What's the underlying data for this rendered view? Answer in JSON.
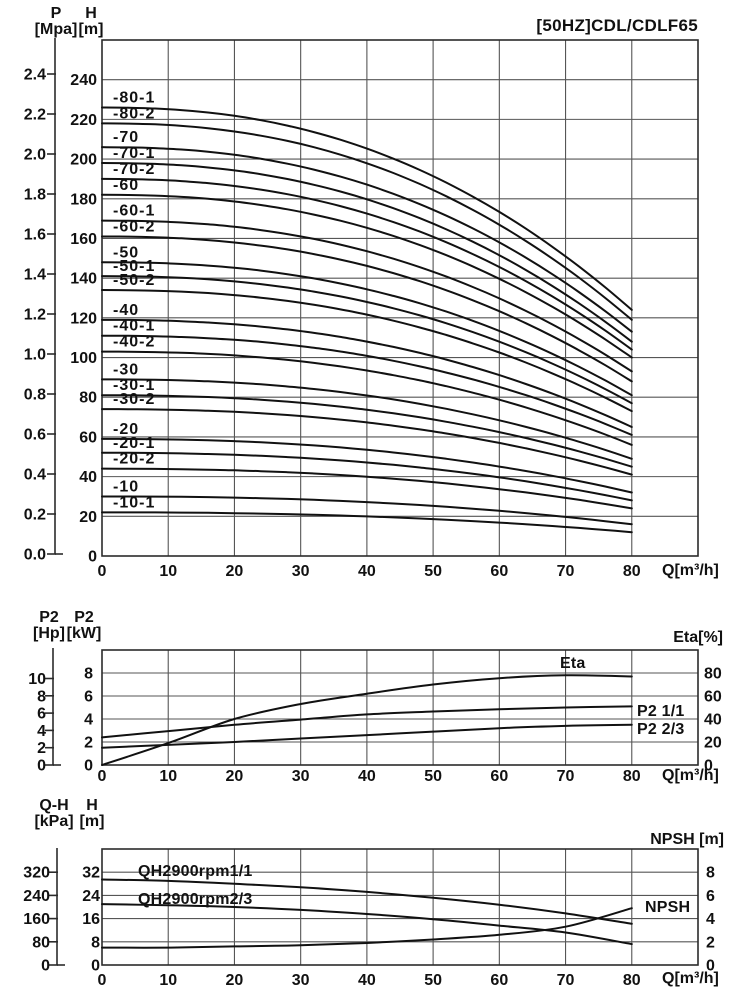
{
  "page_title": "[50HZ]CDL/CDLF65",
  "chart_data": [
    {
      "id": "head_capacity_chart",
      "type": "line",
      "title": "[50HZ]CDL/CDLF65",
      "x_axis": {
        "label": "Q[m³/h]",
        "min": 0,
        "max": 90,
        "ticks": [
          "0",
          "10",
          "20",
          "30",
          "40",
          "50",
          "60",
          "70",
          "80"
        ]
      },
      "p_axis": {
        "name": "P",
        "unit": "[Mpa]",
        "min": 0,
        "max": 2.4,
        "ticks": [
          "0.0",
          "0.2",
          "0.4",
          "0.6",
          "0.8",
          "1.0",
          "1.2",
          "1.4",
          "1.6",
          "1.8",
          "2.0",
          "2.2",
          "2.4"
        ]
      },
      "h_axis": {
        "name": "H",
        "unit": "[m]",
        "min": 0,
        "max": 260,
        "grid_step": 20,
        "ticks": [
          "0",
          "20",
          "40",
          "60",
          "80",
          "100",
          "120",
          "140",
          "160",
          "180",
          "200",
          "220",
          "240"
        ]
      },
      "curve_model": {
        "formula": "H(Q) = H0 - (H0 - H80) * (Q/80)^2.3",
        "exponent": 2.3,
        "q_start": 0,
        "q_end": 80
      },
      "series": [
        {
          "name": "-80-1",
          "h_q0": 226,
          "h_q80": 124
        },
        {
          "name": "-80-2",
          "h_q0": 218,
          "h_q80": 119
        },
        {
          "name": "-70",
          "h_q0": 206,
          "h_q80": 113
        },
        {
          "name": "-70-1",
          "h_q0": 198,
          "h_q80": 108
        },
        {
          "name": "-70-2",
          "h_q0": 190,
          "h_q80": 104
        },
        {
          "name": "-60",
          "h_q0": 182,
          "h_q80": 100
        },
        {
          "name": "-60-1",
          "h_q0": 169,
          "h_q80": 93
        },
        {
          "name": "-60-2",
          "h_q0": 161,
          "h_q80": 88
        },
        {
          "name": "-50",
          "h_q0": 148,
          "h_q80": 81
        },
        {
          "name": "-50-1",
          "h_q0": 141,
          "h_q80": 77
        },
        {
          "name": "-50-2",
          "h_q0": 134,
          "h_q80": 73
        },
        {
          "name": "-40",
          "h_q0": 119,
          "h_q80": 65
        },
        {
          "name": "-40-1",
          "h_q0": 111,
          "h_q80": 61
        },
        {
          "name": "-40-2",
          "h_q0": 103,
          "h_q80": 56
        },
        {
          "name": "-30",
          "h_q0": 89,
          "h_q80": 49
        },
        {
          "name": "-30-1",
          "h_q0": 81,
          "h_q80": 45
        },
        {
          "name": "-30-2",
          "h_q0": 74,
          "h_q80": 41
        },
        {
          "name": "-20",
          "h_q0": 59,
          "h_q80": 32
        },
        {
          "name": "-20-1",
          "h_q0": 52,
          "h_q80": 28
        },
        {
          "name": "-20-2",
          "h_q0": 44,
          "h_q80": 24
        },
        {
          "name": "-10",
          "h_q0": 30,
          "h_q80": 16
        },
        {
          "name": "-10-1",
          "h_q0": 22,
          "h_q80": 12
        }
      ]
    },
    {
      "id": "power_efficiency_chart",
      "type": "line",
      "x_axis": {
        "label": "Q[m³/h]",
        "min": 0,
        "max": 90,
        "ticks": [
          "0",
          "10",
          "20",
          "30",
          "40",
          "50",
          "60",
          "70",
          "80"
        ]
      },
      "hp_axis": {
        "name": "P2",
        "unit": "[Hp]",
        "ticks": [
          "10",
          "8",
          "6",
          "4",
          "2",
          "0"
        ]
      },
      "kw_axis": {
        "name": "P2",
        "unit": "[kW]",
        "min": 0,
        "max": 10,
        "ticks": [
          "8",
          "6",
          "4",
          "2",
          "0"
        ]
      },
      "right_axis": {
        "label": "Eta[%]",
        "min": 0,
        "max": 100,
        "ticks": [
          "80",
          "60",
          "40",
          "20",
          "0"
        ]
      },
      "x": [
        0,
        10,
        20,
        30,
        40,
        50,
        60,
        70,
        80
      ],
      "series": [
        {
          "name": "Eta",
          "unit": "%",
          "values": [
            0,
            19,
            40,
            53,
            62,
            70,
            75.5,
            78,
            77
          ]
        },
        {
          "name": "P2 1/1",
          "unit": "kW",
          "values": [
            2.4,
            2.95,
            3.5,
            3.95,
            4.4,
            4.65,
            4.85,
            5.0,
            5.1
          ]
        },
        {
          "name": "P2 2/3",
          "unit": "kW",
          "values": [
            1.5,
            1.75,
            2.0,
            2.3,
            2.6,
            2.9,
            3.2,
            3.4,
            3.5
          ]
        }
      ],
      "labels": [
        {
          "text": "Eta",
          "x": 560,
          "y": 668
        },
        {
          "text": "P2 1/1",
          "x": 637,
          "y": 716
        },
        {
          "text": "P2 2/3",
          "x": 637,
          "y": 734
        }
      ]
    },
    {
      "id": "qh_npsh_chart",
      "type": "line",
      "x_axis": {
        "label": "Q[m³/h]",
        "min": 0,
        "max": 90,
        "ticks": [
          "0",
          "10",
          "20",
          "30",
          "40",
          "50",
          "60",
          "70",
          "80"
        ]
      },
      "kpa_axis": {
        "name": "Q-H",
        "unit": "[kPa]",
        "ticks": [
          "320",
          "240",
          "160",
          "80",
          "0"
        ]
      },
      "m_axis": {
        "name": "H",
        "unit": "[m]",
        "min": 0,
        "max": 40,
        "ticks": [
          "32",
          "24",
          "16",
          "8",
          "0"
        ]
      },
      "right_axis": {
        "label": "NPSH [m]",
        "min": 0,
        "max": 10,
        "ticks": [
          "8",
          "6",
          "4",
          "2",
          "0"
        ]
      },
      "x": [
        0,
        10,
        20,
        30,
        40,
        50,
        60,
        70,
        80
      ],
      "series": [
        {
          "name": "QH2900rpm1/1",
          "unit": "m",
          "values": [
            29.5,
            29,
            28,
            26.8,
            25.2,
            23.2,
            20.8,
            17.8,
            14.2
          ]
        },
        {
          "name": "QH2900rpm2/3",
          "unit": "m",
          "values": [
            21,
            20.6,
            20,
            19,
            17.6,
            15.8,
            13.6,
            11.2,
            7.2
          ]
        },
        {
          "name": "NPSH",
          "unit": "m",
          "values": [
            1.5,
            1.5,
            1.6,
            1.7,
            1.9,
            2.2,
            2.6,
            3.3,
            4.9
          ]
        }
      ],
      "labels": [
        {
          "text": "QH2900rpm1/1",
          "x": 138,
          "y": 876
        },
        {
          "text": "QH2900rpm2/3",
          "x": 138,
          "y": 904
        },
        {
          "text": "NPSH",
          "x": 645,
          "y": 912
        }
      ]
    }
  ],
  "colors": {
    "curve": "#111111",
    "grid": "#565656",
    "border": "#2b2b2b",
    "text": "#111111",
    "background": "#ffffff"
  }
}
